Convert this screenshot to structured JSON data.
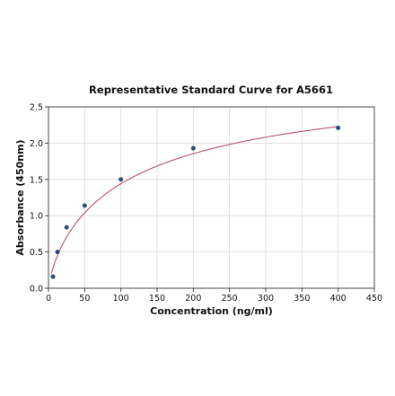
{
  "chart_data": {
    "type": "scatter",
    "title": "Representative Standard Curve for A5661",
    "xlabel": "Concentration (ng/ml)",
    "ylabel": "Absorbance (450nm)",
    "xlim": [
      0,
      450
    ],
    "ylim": [
      0,
      2.5
    ],
    "xticks": [
      "0",
      "50",
      "100",
      "150",
      "200",
      "250",
      "300",
      "350",
      "400",
      "450"
    ],
    "yticks": [
      "0.0",
      "0.5",
      "1.0",
      "1.5",
      "2.0",
      "2.5"
    ],
    "grid": true,
    "points": [
      {
        "x": 6.25,
        "y": 0.16
      },
      {
        "x": 12.5,
        "y": 0.5
      },
      {
        "x": 25,
        "y": 0.84
      },
      {
        "x": 50,
        "y": 1.14
      },
      {
        "x": 100,
        "y": 1.5
      },
      {
        "x": 200,
        "y": 1.93
      },
      {
        "x": 400,
        "y": 2.21
      }
    ],
    "fit_curve": true,
    "colors": {
      "points": "#2b4a78",
      "curve": "#b5546a"
    }
  }
}
